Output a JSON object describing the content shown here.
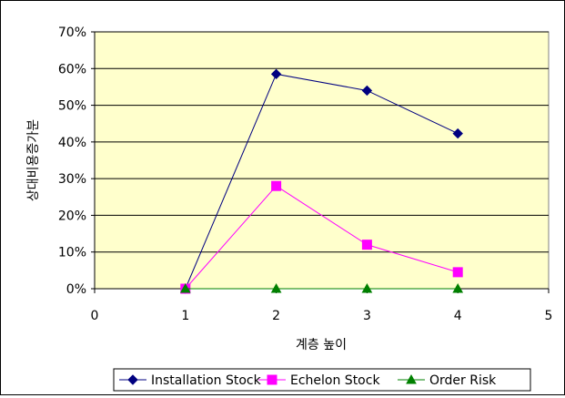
{
  "chart_data": {
    "type": "line",
    "xlabel": "계층 높이",
    "ylabel": "상대비용증가분",
    "xlim": [
      0,
      5
    ],
    "ylim": [
      0,
      70
    ],
    "x_ticks": [
      "0",
      "1",
      "2",
      "3",
      "4",
      "5"
    ],
    "y_ticks": [
      "0%",
      "10%",
      "20%",
      "30%",
      "40%",
      "50%",
      "60%",
      "70%"
    ],
    "grid": true,
    "plot_background": "#FFFFCC",
    "legend_position": "bottom",
    "series": [
      {
        "name": "Installation Stock",
        "color": "#000080",
        "marker": "diamond",
        "x": [
          1,
          2,
          3,
          4
        ],
        "y": [
          0,
          58.5,
          54,
          42.3
        ]
      },
      {
        "name": "Echelon Stock",
        "color": "#FF00FF",
        "marker": "square",
        "x": [
          1,
          2,
          3,
          4
        ],
        "y": [
          0,
          28,
          12,
          4.5
        ]
      },
      {
        "name": "Order Risk",
        "color": "#008000",
        "marker": "triangle",
        "x": [
          1,
          2,
          3,
          4
        ],
        "y": [
          0,
          0,
          0,
          0
        ]
      }
    ]
  }
}
